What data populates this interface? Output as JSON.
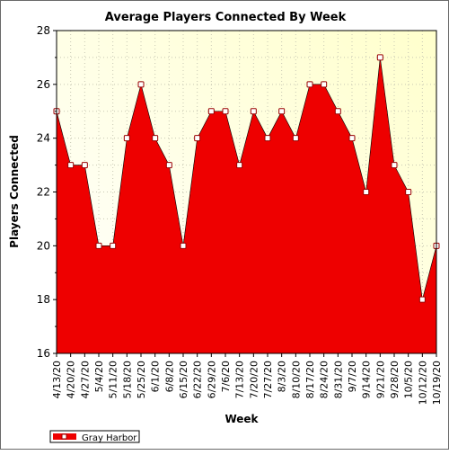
{
  "chart_data": {
    "type": "area",
    "title": "Average Players Connected By Week",
    "xlabel": "Week",
    "ylabel": "Players Connected",
    "ylim": [
      16,
      28
    ],
    "yticks": [
      16,
      18,
      20,
      22,
      24,
      26,
      28
    ],
    "grid": true,
    "legend_position": "bottom-left",
    "x": [
      "4/13/20",
      "4/20/20",
      "4/27/20",
      "5/4/20",
      "5/11/20",
      "5/18/20",
      "5/25/20",
      "6/1/20",
      "6/8/20",
      "6/15/20",
      "6/22/20",
      "6/29/20",
      "7/6/20",
      "7/13/20",
      "7/20/20",
      "7/27/20",
      "8/3/20",
      "8/10/20",
      "8/17/20",
      "8/24/20",
      "8/31/20",
      "9/7/20",
      "9/14/20",
      "9/21/20",
      "9/28/20",
      "10/5/20",
      "10/12/20",
      "10/19/20"
    ],
    "series": [
      {
        "name": "Gray Harbor",
        "color": "#ee0000",
        "values": [
          25,
          23,
          23,
          20,
          20,
          24,
          26,
          24,
          23,
          20,
          24,
          25,
          25,
          23,
          25,
          24,
          25,
          24,
          26,
          26,
          25,
          24,
          22,
          27,
          23,
          22,
          18,
          20
        ]
      }
    ],
    "colors": {
      "plot_bg_start": "#ffffff",
      "plot_bg_end": "#ffffcc",
      "grid": "#c8c8b4",
      "marker_fill": "#ffffff",
      "marker_stroke": "#990000"
    }
  }
}
